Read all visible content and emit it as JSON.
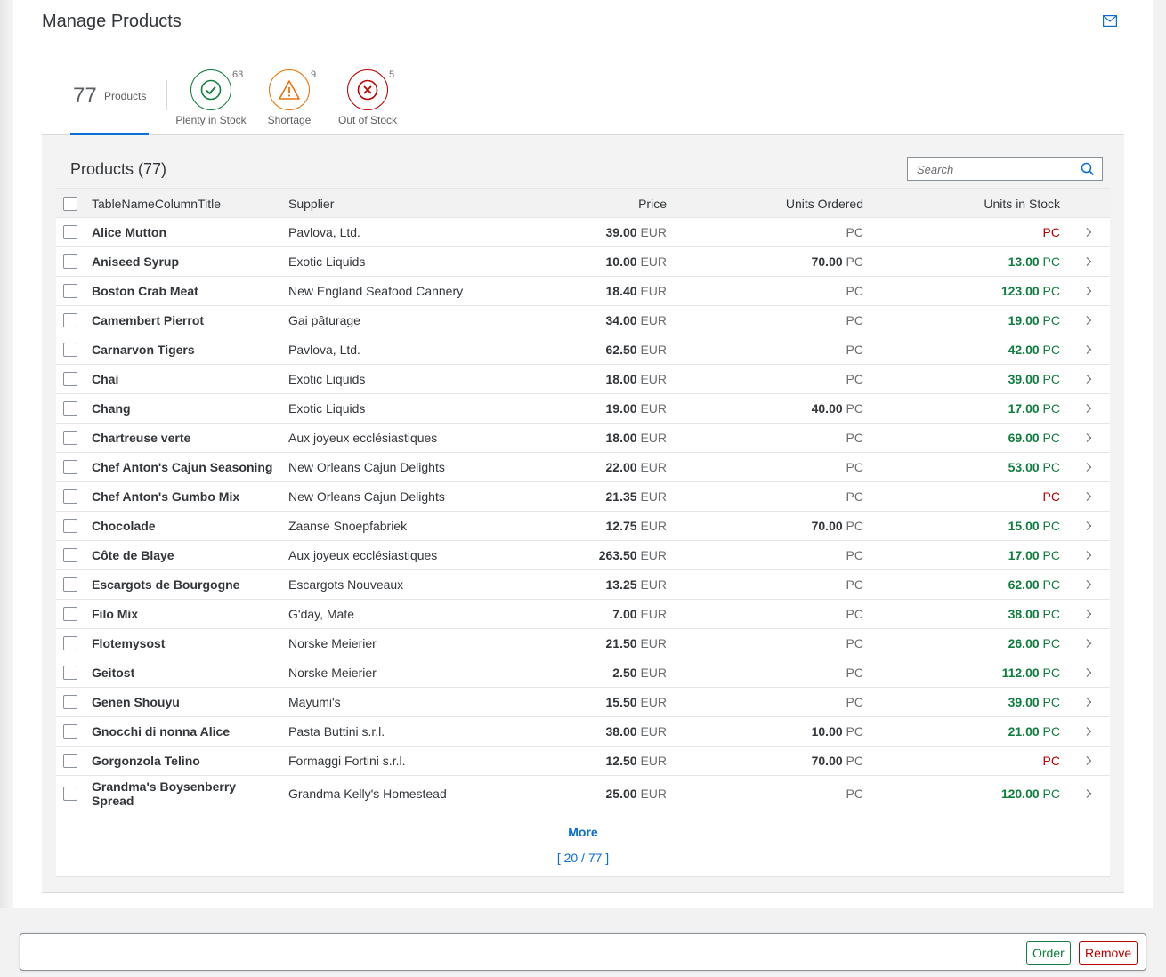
{
  "page": {
    "title": "Manage Products"
  },
  "icons": {
    "mail": "mail-icon",
    "search": "search-icon"
  },
  "colors": {
    "accent": "#0a6ed1",
    "positive": "#107e3e",
    "critical": "#e9730c",
    "negative": "#bb0000"
  },
  "tabs": {
    "count": {
      "value": "77",
      "label": "Products"
    },
    "items": [
      {
        "label": "Plenty in Stock",
        "count": "63",
        "status": "positive",
        "icon": "check-icon"
      },
      {
        "label": "Shortage",
        "count": "9",
        "status": "critical",
        "icon": "warning-icon"
      },
      {
        "label": "Out of Stock",
        "count": "5",
        "status": "negative",
        "icon": "error-icon"
      }
    ]
  },
  "table": {
    "title": "Products (77)",
    "search_placeholder": "Search",
    "columns": [
      "TableNameColumnTitle",
      "Supplier",
      "Price",
      "Units Ordered",
      "Units in Stock"
    ],
    "rows": [
      {
        "name": "Alice Mutton",
        "supplier": "Pavlova, Ltd.",
        "price": "39.00",
        "price_unit": "EUR",
        "ordered": "",
        "ordered_unit": "PC",
        "stock": "",
        "stock_unit": "PC"
      },
      {
        "name": "Aniseed Syrup",
        "supplier": "Exotic Liquids",
        "price": "10.00",
        "price_unit": "EUR",
        "ordered": "70.00",
        "ordered_unit": "PC",
        "stock": "13.00",
        "stock_unit": "PC"
      },
      {
        "name": "Boston Crab Meat",
        "supplier": "New England Seafood Cannery",
        "price": "18.40",
        "price_unit": "EUR",
        "ordered": "",
        "ordered_unit": "PC",
        "stock": "123.00",
        "stock_unit": "PC"
      },
      {
        "name": "Camembert Pierrot",
        "supplier": "Gai pâturage",
        "price": "34.00",
        "price_unit": "EUR",
        "ordered": "",
        "ordered_unit": "PC",
        "stock": "19.00",
        "stock_unit": "PC"
      },
      {
        "name": "Carnarvon Tigers",
        "supplier": "Pavlova, Ltd.",
        "price": "62.50",
        "price_unit": "EUR",
        "ordered": "",
        "ordered_unit": "PC",
        "stock": "42.00",
        "stock_unit": "PC"
      },
      {
        "name": "Chai",
        "supplier": "Exotic Liquids",
        "price": "18.00",
        "price_unit": "EUR",
        "ordered": "",
        "ordered_unit": "PC",
        "stock": "39.00",
        "stock_unit": "PC"
      },
      {
        "name": "Chang",
        "supplier": "Exotic Liquids",
        "price": "19.00",
        "price_unit": "EUR",
        "ordered": "40.00",
        "ordered_unit": "PC",
        "stock": "17.00",
        "stock_unit": "PC"
      },
      {
        "name": "Chartreuse verte",
        "supplier": "Aux joyeux ecclésiastiques",
        "price": "18.00",
        "price_unit": "EUR",
        "ordered": "",
        "ordered_unit": "PC",
        "stock": "69.00",
        "stock_unit": "PC"
      },
      {
        "name": "Chef Anton's Cajun Seasoning",
        "supplier": "New Orleans Cajun Delights",
        "price": "22.00",
        "price_unit": "EUR",
        "ordered": "",
        "ordered_unit": "PC",
        "stock": "53.00",
        "stock_unit": "PC"
      },
      {
        "name": "Chef Anton's Gumbo Mix",
        "supplier": "New Orleans Cajun Delights",
        "price": "21.35",
        "price_unit": "EUR",
        "ordered": "",
        "ordered_unit": "PC",
        "stock": "",
        "stock_unit": "PC"
      },
      {
        "name": "Chocolade",
        "supplier": "Zaanse Snoepfabriek",
        "price": "12.75",
        "price_unit": "EUR",
        "ordered": "70.00",
        "ordered_unit": "PC",
        "stock": "15.00",
        "stock_unit": "PC"
      },
      {
        "name": "Côte de Blaye",
        "supplier": "Aux joyeux ecclésiastiques",
        "price": "263.50",
        "price_unit": "EUR",
        "ordered": "",
        "ordered_unit": "PC",
        "stock": "17.00",
        "stock_unit": "PC"
      },
      {
        "name": "Escargots de Bourgogne",
        "supplier": "Escargots Nouveaux",
        "price": "13.25",
        "price_unit": "EUR",
        "ordered": "",
        "ordered_unit": "PC",
        "stock": "62.00",
        "stock_unit": "PC"
      },
      {
        "name": "Filo Mix",
        "supplier": "G'day, Mate",
        "price": "7.00",
        "price_unit": "EUR",
        "ordered": "",
        "ordered_unit": "PC",
        "stock": "38.00",
        "stock_unit": "PC"
      },
      {
        "name": "Flotemysost",
        "supplier": "Norske Meierier",
        "price": "21.50",
        "price_unit": "EUR",
        "ordered": "",
        "ordered_unit": "PC",
        "stock": "26.00",
        "stock_unit": "PC"
      },
      {
        "name": "Geitost",
        "supplier": "Norske Meierier",
        "price": "2.50",
        "price_unit": "EUR",
        "ordered": "",
        "ordered_unit": "PC",
        "stock": "112.00",
        "stock_unit": "PC"
      },
      {
        "name": "Genen Shouyu",
        "supplier": "Mayumi's",
        "price": "15.50",
        "price_unit": "EUR",
        "ordered": "",
        "ordered_unit": "PC",
        "stock": "39.00",
        "stock_unit": "PC"
      },
      {
        "name": "Gnocchi di nonna Alice",
        "supplier": "Pasta Buttini s.r.l.",
        "price": "38.00",
        "price_unit": "EUR",
        "ordered": "10.00",
        "ordered_unit": "PC",
        "stock": "21.00",
        "stock_unit": "PC"
      },
      {
        "name": "Gorgonzola Telino",
        "supplier": "Formaggi Fortini s.r.l.",
        "price": "12.50",
        "price_unit": "EUR",
        "ordered": "70.00",
        "ordered_unit": "PC",
        "stock": "",
        "stock_unit": "PC"
      },
      {
        "name": "Grandma's Boysenberry Spread",
        "supplier": "Grandma Kelly's Homestead",
        "price": "25.00",
        "price_unit": "EUR",
        "ordered": "",
        "ordered_unit": "PC",
        "stock": "120.00",
        "stock_unit": "PC"
      }
    ],
    "more_label": "More",
    "more_count": "[ 20 / 77 ]"
  },
  "footer": {
    "order_label": "Order",
    "remove_label": "Remove"
  }
}
